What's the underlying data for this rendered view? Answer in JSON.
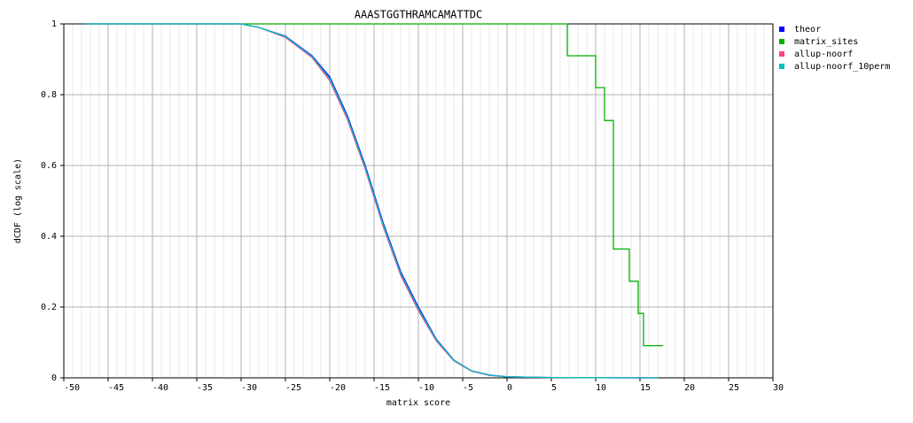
{
  "chart_data": {
    "type": "line",
    "title": "AAASTGGTHRAMCAMATTDC",
    "x_label": "matrix score",
    "y_label": "dCDF (log scale)",
    "xlim": [
      -50,
      30
    ],
    "ylim": [
      0,
      1
    ],
    "xticks": [
      -50,
      -45,
      -40,
      -35,
      -30,
      -25,
      -20,
      -15,
      -10,
      -5,
      0,
      5,
      10,
      15,
      20,
      25,
      30
    ],
    "yticks": [
      0,
      0.2,
      0.4,
      0.6,
      0.8,
      1
    ],
    "grid": true,
    "legend": "right",
    "series": [
      {
        "name": "theor",
        "color": "#0000ff",
        "x": [
          -47.5,
          -30,
          -28,
          -25,
          -22,
          -20,
          -18,
          -16,
          -15,
          -14,
          -12,
          -10,
          -8,
          -6,
          -4,
          -2,
          0,
          5,
          10,
          17
        ],
        "values": [
          1,
          1,
          0.99,
          0.965,
          0.91,
          0.85,
          0.74,
          0.6,
          0.52,
          0.44,
          0.3,
          0.2,
          0.11,
          0.05,
          0.02,
          0.008,
          0.003,
          0.001,
          0.0005,
          0
        ]
      },
      {
        "name": "matrix_sites",
        "color": "#00b000",
        "step": true,
        "x": [
          -47.5,
          6.8,
          10,
          11,
          12,
          13.8,
          14.8,
          15.4,
          17.6
        ],
        "values": [
          1,
          0.91,
          0.82,
          0.727,
          0.364,
          0.273,
          0.182,
          0.091,
          0.091
        ]
      },
      {
        "name": "allup-noorf",
        "color": "#ff4080",
        "x": [
          -47.5,
          -30,
          -28,
          -25,
          -22,
          -20,
          -18,
          -16,
          -15,
          -14,
          -12,
          -10,
          -8,
          -6,
          -4,
          -2,
          0,
          5,
          10,
          17
        ],
        "values": [
          1,
          1,
          0.99,
          0.962,
          0.905,
          0.84,
          0.73,
          0.59,
          0.51,
          0.43,
          0.29,
          0.19,
          0.105,
          0.048,
          0.019,
          0.007,
          0.003,
          0.001,
          0.0005,
          0
        ]
      },
      {
        "name": "allup-noorf_10perm",
        "color": "#00c0c0",
        "x": [
          -47.5,
          -30,
          -28,
          -25,
          -22,
          -20,
          -18,
          -16,
          -15,
          -14,
          -12,
          -10,
          -8,
          -6,
          -4,
          -2,
          0,
          5,
          10,
          17
        ],
        "values": [
          1,
          1,
          0.99,
          0.964,
          0.908,
          0.845,
          0.735,
          0.595,
          0.515,
          0.435,
          0.295,
          0.195,
          0.108,
          0.049,
          0.02,
          0.0075,
          0.003,
          0.001,
          0.0005,
          0
        ]
      }
    ]
  }
}
